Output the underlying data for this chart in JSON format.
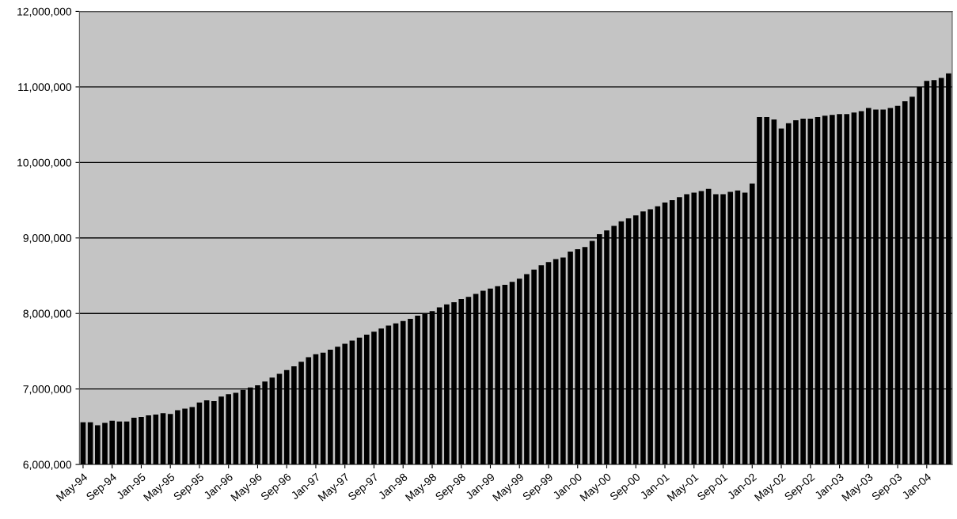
{
  "chart_data": {
    "type": "bar",
    "color": "#000000",
    "grid": "y",
    "categories": [
      "May-94",
      null,
      null,
      null,
      "Sep-94",
      null,
      null,
      null,
      "Jan-95",
      null,
      null,
      null,
      "May-95",
      null,
      null,
      null,
      "Sep-95",
      null,
      null,
      null,
      "Jan-96",
      null,
      null,
      null,
      "May-96",
      null,
      null,
      null,
      "Sep-96",
      null,
      null,
      null,
      "Jan-97",
      null,
      null,
      null,
      "May-97",
      null,
      null,
      null,
      "Sep-97",
      null,
      null,
      null,
      "Jan-98",
      null,
      null,
      null,
      "May-98",
      null,
      null,
      null,
      "Sep-98",
      null,
      null,
      null,
      "Jan-99",
      null,
      null,
      null,
      "May-99",
      null,
      null,
      null,
      "Sep-99",
      null,
      null,
      null,
      "Jan-00",
      null,
      null,
      null,
      "May-00",
      null,
      null,
      null,
      "Sep-00",
      null,
      null,
      null,
      "Jan-01",
      null,
      null,
      null,
      "May-01",
      null,
      null,
      null,
      "Sep-01",
      null,
      null,
      null,
      "Jan-02",
      null,
      null,
      null,
      "May-02",
      null,
      null,
      null,
      "Sep-02",
      null,
      null,
      null,
      "Jan-03",
      null,
      null,
      null,
      "May-03",
      null,
      null,
      null,
      "Sep-03",
      null,
      null,
      null,
      "Jan-04",
      null,
      null,
      null
    ],
    "values": [
      6560000,
      6560000,
      6520000,
      6550000,
      6580000,
      6570000,
      6570000,
      6620000,
      6630000,
      6650000,
      6660000,
      6680000,
      6670000,
      6720000,
      6740000,
      6760000,
      6820000,
      6850000,
      6840000,
      6900000,
      6930000,
      6950000,
      6990000,
      7020000,
      7050000,
      7100000,
      7150000,
      7200000,
      7250000,
      7300000,
      7360000,
      7420000,
      7460000,
      7480000,
      7520000,
      7560000,
      7600000,
      7640000,
      7680000,
      7720000,
      7760000,
      7800000,
      7840000,
      7870000,
      7900000,
      7930000,
      7970000,
      8000000,
      8030000,
      8080000,
      8120000,
      8150000,
      8190000,
      8220000,
      8260000,
      8300000,
      8330000,
      8360000,
      8380000,
      8420000,
      8460000,
      8520000,
      8580000,
      8640000,
      8680000,
      8720000,
      8740000,
      8820000,
      8850000,
      8880000,
      8960000,
      9050000,
      9100000,
      9160000,
      9220000,
      9260000,
      9300000,
      9350000,
      9380000,
      9420000,
      9470000,
      9500000,
      9540000,
      9580000,
      9600000,
      9620000,
      9650000,
      9580000,
      9580000,
      9610000,
      9630000,
      9600000,
      9720000,
      10600000,
      10600000,
      10570000,
      10450000,
      10520000,
      10560000,
      10580000,
      10580000,
      10600000,
      10620000,
      10630000,
      10640000,
      10640000,
      10660000,
      10680000,
      10720000,
      10700000,
      10700000,
      10720000,
      10750000,
      10810000,
      10870000,
      11000000,
      11080000,
      11090000,
      11120000,
      11180000
    ],
    "ylim": [
      6000000,
      12000000
    ],
    "yticks": [
      {
        "value": 6000000,
        "label": "6,000,000"
      },
      {
        "value": 7000000,
        "label": "7,000,000"
      },
      {
        "value": 8000000,
        "label": "8,000,000"
      },
      {
        "value": 9000000,
        "label": "9,000,000"
      },
      {
        "value": 10000000,
        "label": "10,000,000"
      },
      {
        "value": 11000000,
        "label": "11,000,000"
      },
      {
        "value": 12000000,
        "label": "12,000,000"
      }
    ]
  }
}
